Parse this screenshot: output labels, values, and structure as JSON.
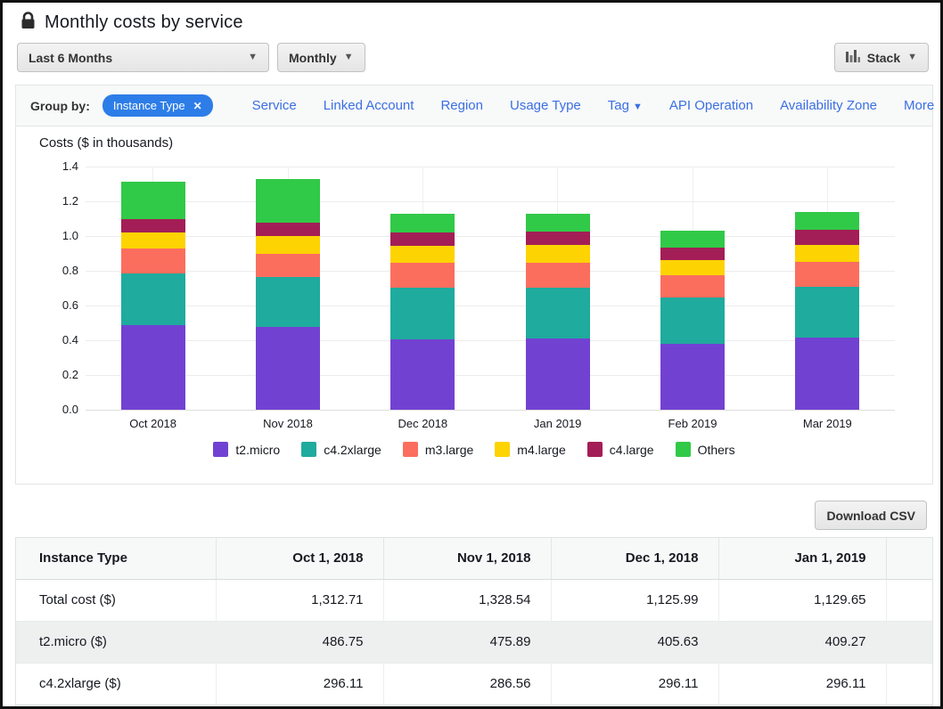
{
  "header": {
    "title": "Monthly costs by service"
  },
  "toolbar": {
    "date_range": "Last 6 Months",
    "granularity": "Monthly",
    "chart_style": "Stack"
  },
  "group_by": {
    "label": "Group by:",
    "active_filter": "Instance Type",
    "remove_glyph": "✕",
    "links": [
      {
        "label": "Service",
        "caret": false
      },
      {
        "label": "Linked Account",
        "caret": false
      },
      {
        "label": "Region",
        "caret": false
      },
      {
        "label": "Usage Type",
        "caret": false
      },
      {
        "label": "Tag",
        "caret": true
      },
      {
        "label": "API Operation",
        "caret": false
      },
      {
        "label": "Availability Zone",
        "caret": false
      },
      {
        "label": "More",
        "caret": true
      }
    ]
  },
  "chart_data": {
    "type": "bar",
    "stacked": true,
    "title": "Costs ($ in thousands)",
    "categories": [
      "Oct 2018",
      "Nov 2018",
      "Dec 2018",
      "Jan 2019",
      "Feb 2019",
      "Mar 2019"
    ],
    "series": [
      {
        "name": "t2.micro",
        "color": "#7142d2",
        "values": [
          0.487,
          0.476,
          0.406,
          0.409,
          0.379,
          0.416
        ]
      },
      {
        "name": "c4.2xlarge",
        "color": "#1fab9d",
        "values": [
          0.296,
          0.287,
          0.296,
          0.296,
          0.269,
          0.292
        ]
      },
      {
        "name": "m3.large",
        "color": "#fb6e5e",
        "values": [
          0.147,
          0.137,
          0.144,
          0.14,
          0.125,
          0.145
        ]
      },
      {
        "name": "m4.large",
        "color": "#fdd301",
        "values": [
          0.092,
          0.098,
          0.096,
          0.103,
          0.089,
          0.098
        ]
      },
      {
        "name": "c4.large",
        "color": "#a31e56",
        "values": [
          0.077,
          0.077,
          0.08,
          0.078,
          0.073,
          0.086
        ]
      },
      {
        "name": "Others",
        "color": "#31c948",
        "values": [
          0.214,
          0.254,
          0.104,
          0.104,
          0.098,
          0.104
        ]
      }
    ],
    "ylim": [
      0,
      1.4
    ],
    "yticks": [
      "0.0",
      "0.2",
      "0.4",
      "0.6",
      "0.8",
      "1.0",
      "1.2",
      "1.4"
    ],
    "xlabel": "",
    "ylabel": "Costs ($ in thousands)",
    "grid": true,
    "legend_position": "bottom"
  },
  "table": {
    "download_label": "Download CSV",
    "columns": [
      "Instance Type",
      "Oct 1, 2018",
      "Nov 1, 2018",
      "Dec 1, 2018",
      "Jan 1, 2019"
    ],
    "rows": [
      {
        "label": "Total cost ($)",
        "values": [
          "1,312.71",
          "1,328.54",
          "1,125.99",
          "1,129.65"
        ],
        "shaded": false
      },
      {
        "label": "t2.micro ($)",
        "values": [
          "486.75",
          "475.89",
          "405.63",
          "409.27"
        ],
        "shaded": true
      },
      {
        "label": "c4.2xlarge ($)",
        "values": [
          "296.11",
          "286.56",
          "296.11",
          "296.11"
        ],
        "shaded": false
      }
    ]
  },
  "colors": {
    "chip_background": "#2d7de8",
    "link_blue": "#3b6fe4",
    "shaded_row": "#eef0f0"
  }
}
